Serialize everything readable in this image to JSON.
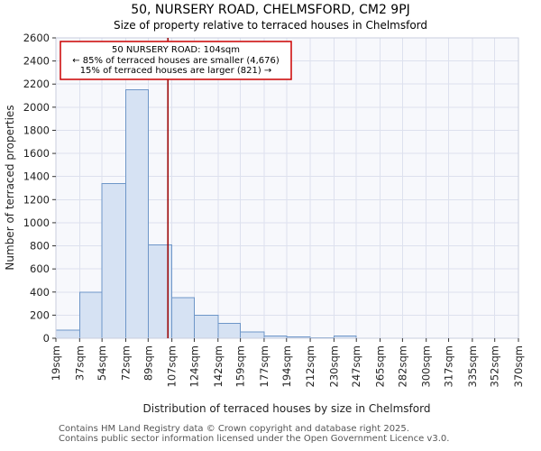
{
  "annotation": {
    "line1": "50 NURSERY ROAD: 104sqm",
    "line2": "← 85% of terraced houses are smaller (4,676)",
    "line3": "15% of terraced houses are larger (821) →"
  },
  "footer": {
    "line1": "Contains HM Land Registry data © Crown copyright and database right 2025.",
    "line2": "Contains public sector information licensed under the Open Government Licence v3.0."
  },
  "colors": {
    "bar_fill": "#d6e2f3",
    "bar_stroke": "#6e96c8",
    "marker_line": "#990000",
    "annotation_border": "#cc0000",
    "grid": "#dde1ee",
    "tick": "#333333"
  },
  "chart_data": {
    "type": "bar",
    "title": "50, NURSERY ROAD, CHELMSFORD, CM2 9PJ",
    "subtitle": "Size of property relative to terraced houses in Chelmsford",
    "xlabel": "Distribution of terraced houses by size in Chelmsford",
    "ylabel": "Number of terraced properties",
    "ylim": [
      0,
      2600
    ],
    "ytick_step": 200,
    "grid": true,
    "x_tick_suffix": "sqm",
    "bin_edges_sqm": [
      19,
      37,
      54,
      72,
      89,
      107,
      124,
      142,
      159,
      177,
      194,
      212,
      230,
      247,
      265,
      282,
      300,
      317,
      335,
      352,
      370
    ],
    "values": [
      70,
      400,
      1340,
      2150,
      810,
      350,
      200,
      130,
      55,
      20,
      10,
      5,
      20,
      0,
      0,
      0,
      0,
      0,
      0,
      0
    ],
    "marker": {
      "label": "50 NURSERY ROAD",
      "sqm": 104
    }
  }
}
